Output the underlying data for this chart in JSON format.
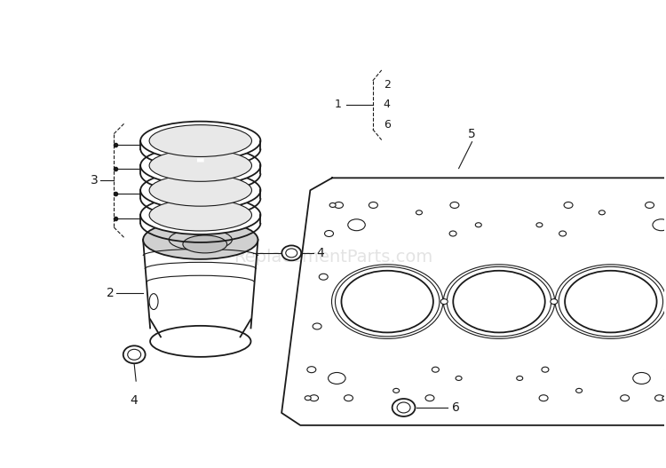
{
  "bg_color": "#ffffff",
  "line_color": "#1a1a1a",
  "watermark_color": "#bbbbbb",
  "watermark_text": "ReplacementParts.com",
  "watermark_fontsize": 14,
  "watermark_alpha": 0.4,
  "label_fontsize": 10
}
